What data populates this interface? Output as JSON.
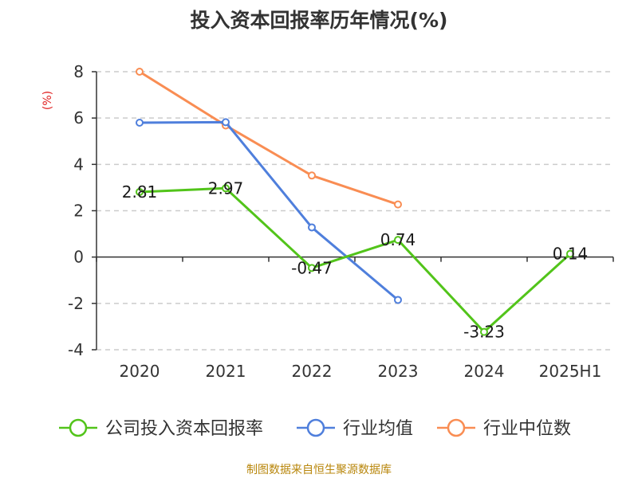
{
  "chart_data": {
    "type": "line",
    "title": "投入资本回报率历年情况(%)",
    "ylabel": "(%)",
    "categories": [
      "2020",
      "2021",
      "2022",
      "2023",
      "2024",
      "2025H1"
    ],
    "ylim": [
      -4,
      8
    ],
    "yticks": [
      -4,
      -2,
      0,
      2,
      4,
      6,
      8
    ],
    "grid": true,
    "legend_position": "bottom",
    "series": [
      {
        "name": "公司投入资本回报率",
        "color": "#52c41a",
        "values": [
          2.81,
          2.97,
          -0.47,
          0.74,
          -3.23,
          0.14
        ],
        "labels": [
          "2.81",
          "2.97",
          "-0.47",
          "0.74",
          "-3.23",
          "0.14"
        ]
      },
      {
        "name": "行业均值",
        "color": "#4f7fdc",
        "values": [
          5.8,
          5.82,
          1.28,
          -1.85,
          null,
          null
        ]
      },
      {
        "name": "行业中位数",
        "color": "#f98d53",
        "values": [
          8.0,
          5.68,
          3.52,
          2.27,
          null,
          null
        ]
      }
    ]
  },
  "source_note": "制图数据来自恒生聚源数据库"
}
